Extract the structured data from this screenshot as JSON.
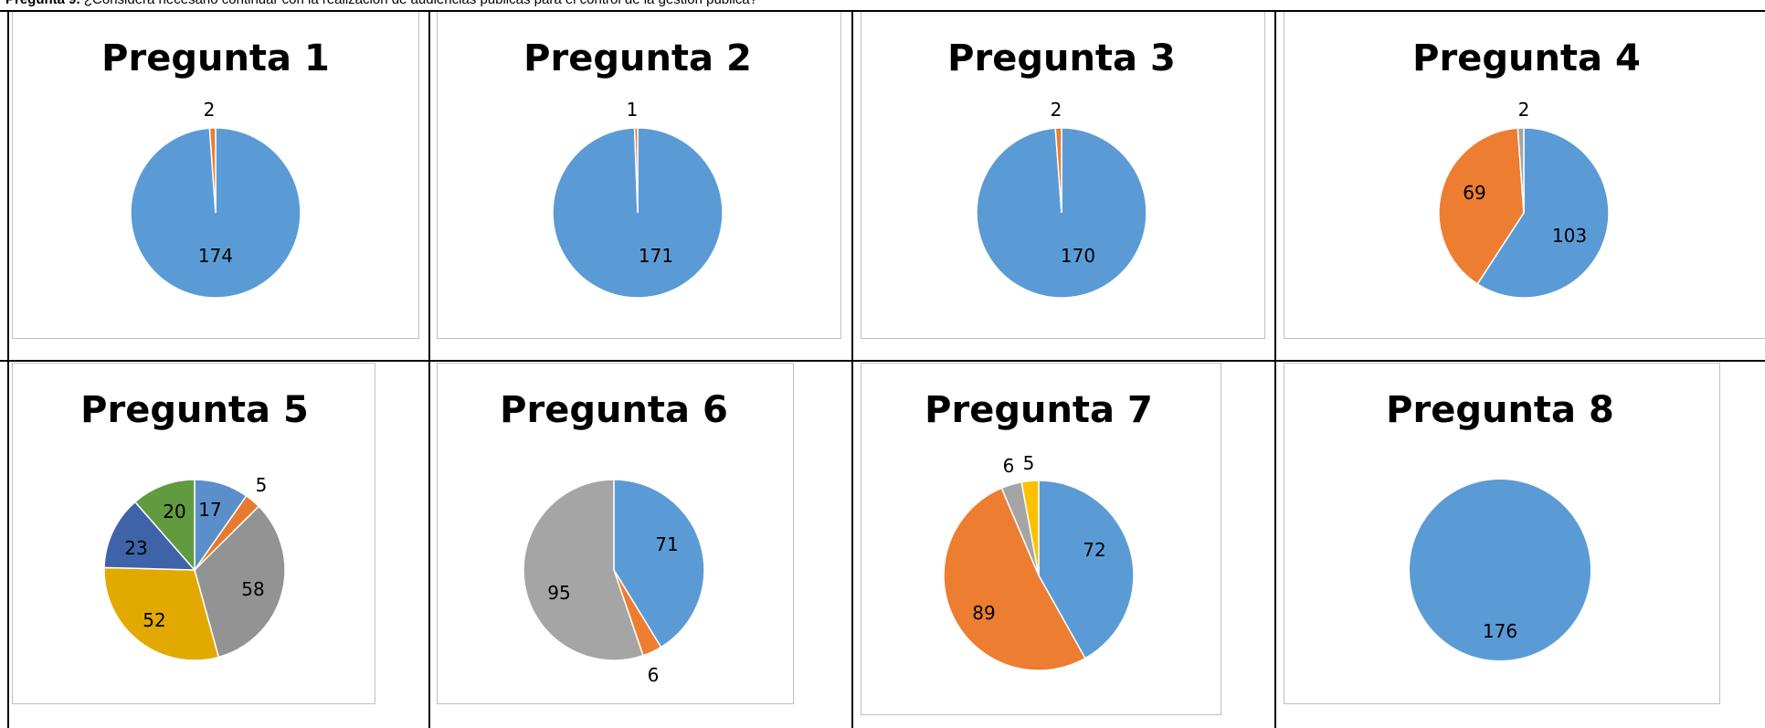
{
  "header": {
    "question_label": "Pregunta 9.",
    "question_text": "¿Considera necesario continuar con la realización de audiencias públicas para el control de la gestión pública?"
  },
  "colors": {
    "blue": "#5b9bd5",
    "orange": "#ed7d31",
    "gray": "#a5a5a5",
    "yellow": "#ffc000",
    "dark_blue": "#4472c4",
    "green": "#70ad47",
    "p5_blue": "#5b8fc9",
    "p5_gray": "#939393",
    "p5_yellow": "#e2aa00",
    "p5_dark_blue": "#3f63a8",
    "p5_green": "#629a3f"
  },
  "chart_data": [
    {
      "type": "pie",
      "title": "Pregunta 1",
      "slices": [
        {
          "value": 174,
          "label": "174",
          "color": "#5b9bd5"
        },
        {
          "value": 2,
          "label": "2",
          "color": "#ed7d31"
        }
      ]
    },
    {
      "type": "pie",
      "title": "Pregunta 2",
      "slices": [
        {
          "value": 171,
          "label": "171",
          "color": "#5b9bd5"
        },
        {
          "value": 1,
          "label": "1",
          "color": "#ed7d31"
        }
      ]
    },
    {
      "type": "pie",
      "title": "Pregunta 3",
      "slices": [
        {
          "value": 170,
          "label": "170",
          "color": "#5b9bd5"
        },
        {
          "value": 2,
          "label": "2",
          "color": "#ed7d31"
        }
      ]
    },
    {
      "type": "pie",
      "title": "Pregunta 4",
      "slices": [
        {
          "value": 103,
          "label": "103",
          "color": "#5b9bd5"
        },
        {
          "value": 69,
          "label": "69",
          "color": "#ed7d31"
        },
        {
          "value": 2,
          "label": "2",
          "color": "#a5a5a5"
        }
      ]
    },
    {
      "type": "pie",
      "title": "Pregunta 5",
      "slices": [
        {
          "value": 17,
          "label": "17",
          "color": "#5b8fc9"
        },
        {
          "value": 5,
          "label": "5",
          "color": "#e67a2e"
        },
        {
          "value": 58,
          "label": "58",
          "color": "#939393"
        },
        {
          "value": 52,
          "label": "52",
          "color": "#e2aa00"
        },
        {
          "value": 23,
          "label": "23",
          "color": "#3f63a8"
        },
        {
          "value": 20,
          "label": "20",
          "color": "#629a3f"
        }
      ]
    },
    {
      "type": "pie",
      "title": "Pregunta 6",
      "slices": [
        {
          "value": 71,
          "label": "71",
          "color": "#5b9bd5"
        },
        {
          "value": 6,
          "label": "6",
          "color": "#ed7d31"
        },
        {
          "value": 95,
          "label": "95",
          "color": "#a5a5a5"
        }
      ]
    },
    {
      "type": "pie",
      "title": "Pregunta 7",
      "slices": [
        {
          "value": 72,
          "label": "72",
          "color": "#5b9bd5"
        },
        {
          "value": 89,
          "label": "89",
          "color": "#ed7d31"
        },
        {
          "value": 6,
          "label": "6",
          "color": "#a5a5a5"
        },
        {
          "value": 5,
          "label": "5",
          "color": "#ffc000"
        }
      ]
    },
    {
      "type": "pie",
      "title": "Pregunta 8",
      "slices": [
        {
          "value": 176,
          "label": "176",
          "color": "#5b9bd5"
        }
      ]
    }
  ]
}
